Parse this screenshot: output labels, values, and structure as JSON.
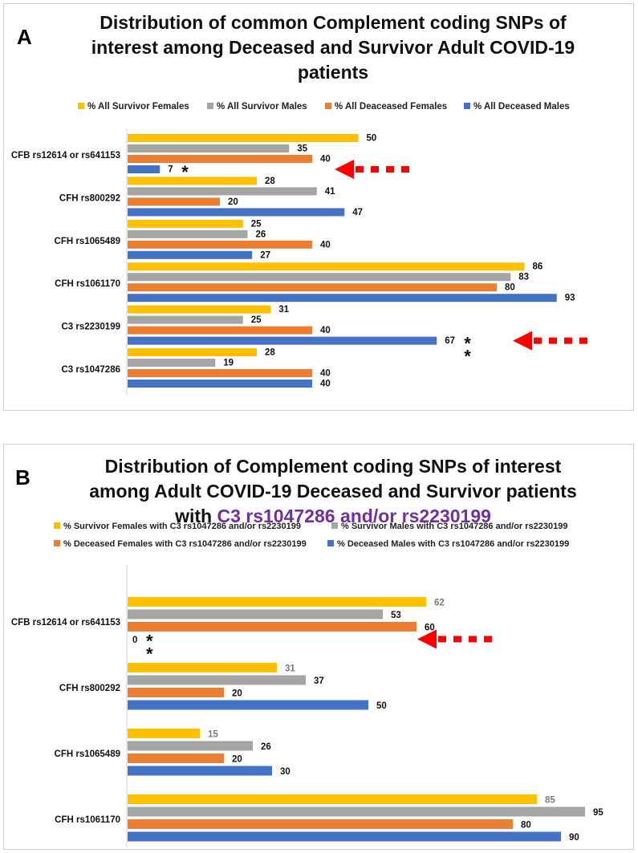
{
  "colors": {
    "yellow": "#ffc000",
    "grey": "#a5a5a5",
    "orange": "#ed7d31",
    "blue": "#4472c4",
    "arrow": "#ff0000"
  },
  "panelA": {
    "letter": "A",
    "title_lines": [
      "Distribution of common Complement coding SNPs of",
      "interest among Deceased and Survivor Adult COVID-19",
      "patients"
    ]
  },
  "panelB": {
    "letter": "B",
    "title_lines": [
      "Distribution of Complement coding SNPs of interest",
      "among Adult COVID-19 Deceased and Survivor patients"
    ],
    "title_line3_prefix": "with ",
    "title_line3_highlight": "C3 rs1047286 and/or rs2230199"
  },
  "chart_data": [
    {
      "type": "bar",
      "orientation": "horizontal",
      "title": "Distribution of common Complement coding SNPs of interest among Deceased and Survivor Adult COVID-19 patients",
      "categories": [
        "CFB rs12614 or rs641153",
        "CFH rs800292",
        "CFH rs1065489",
        "CFH rs1061170",
        "C3 rs2230199",
        "C3 rs1047286"
      ],
      "series": [
        {
          "name": "% All Survivor Females",
          "color": "#ffc000",
          "values": [
            50,
            28,
            25,
            86,
            31,
            28
          ]
        },
        {
          "name": "% All Survivor Males",
          "color": "#a5a5a5",
          "values": [
            35,
            41,
            26,
            83,
            25,
            19
          ]
        },
        {
          "name": "% All Deaceased Females",
          "color": "#ed7d31",
          "values": [
            40,
            20,
            40,
            80,
            40,
            40
          ]
        },
        {
          "name": "% All Deceased Males",
          "color": "#4472c4",
          "values": [
            7,
            47,
            27,
            93,
            67,
            40
          ]
        }
      ],
      "annotations": [
        {
          "category": "CFB rs12614 or rs641153",
          "series": "% All Deceased Males",
          "marker": "*",
          "count": 1,
          "arrow": true
        },
        {
          "category": "C3 rs2230199",
          "series": "% All Deceased Males",
          "marker": "*",
          "count": 2,
          "arrow": true
        }
      ],
      "xlim": [
        0,
        100
      ],
      "legend": "top"
    },
    {
      "type": "bar",
      "orientation": "horizontal",
      "title": "Distribution of Complement coding SNPs of interest among Adult COVID-19 Deceased and Survivor patients with C3 rs1047286 and/or rs2230199",
      "categories": [
        "CFB rs12614 or rs641153",
        "CFH rs800292",
        "CFH rs1065489",
        "CFH rs1061170"
      ],
      "series": [
        {
          "name": "% Survivor Females with C3 rs1047286 and/or rs2230199",
          "color": "#ffc000",
          "values": [
            62,
            31,
            15,
            85
          ]
        },
        {
          "name": "% Survivor Males with C3 rs1047286 and/or rs2230199",
          "color": "#a5a5a5",
          "values": [
            53,
            37,
            26,
            95
          ]
        },
        {
          "name": "% Deceased Females with C3 rs1047286 and/or rs2230199",
          "color": "#ed7d31",
          "values": [
            60,
            20,
            20,
            80
          ]
        },
        {
          "name": "% Deceased Males with C3 rs1047286 and/or rs2230199",
          "color": "#4472c4",
          "values": [
            0,
            50,
            30,
            90
          ]
        }
      ],
      "annotations": [
        {
          "category": "CFB rs12614 or rs641153",
          "series": "% Deceased Males with C3 rs1047286 and/or rs2230199",
          "marker": "*",
          "count": 2,
          "arrow": true
        }
      ],
      "xlim": [
        0,
        100
      ],
      "legend": "top"
    }
  ]
}
